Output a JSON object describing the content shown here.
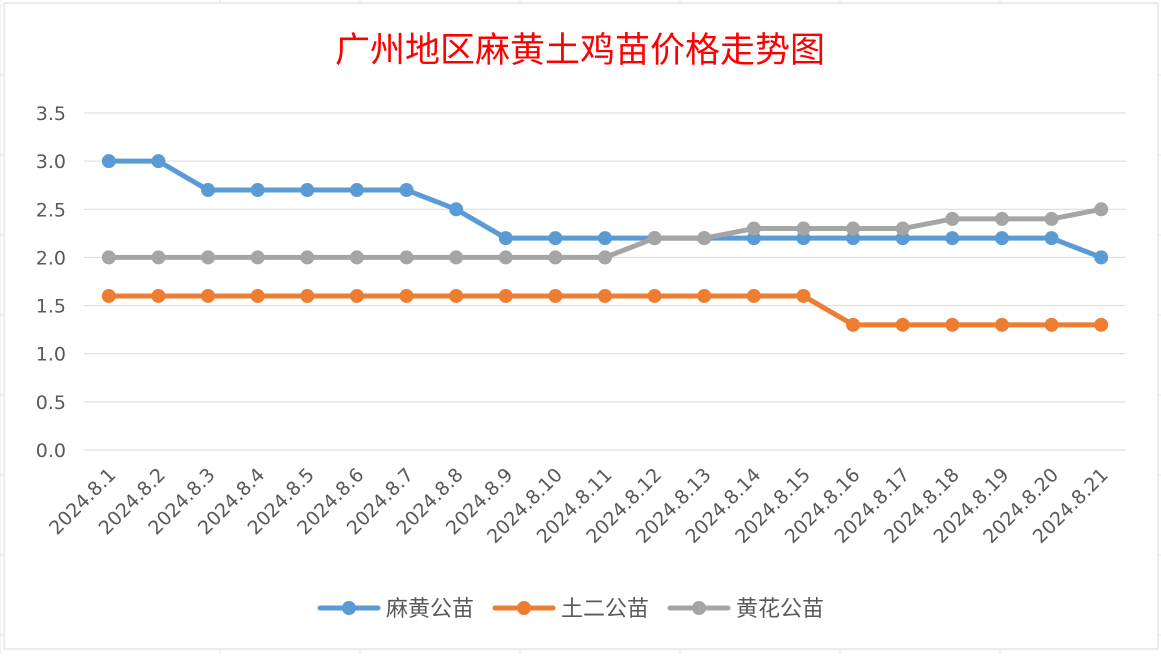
{
  "chart_data": {
    "type": "line",
    "title": "广州地区麻黄土鸡苗价格走势图",
    "xlabel": "",
    "ylabel": "",
    "categories": [
      "2024.8.1",
      "2024.8.2",
      "2024.8.3",
      "2024.8.4",
      "2024.8.5",
      "2024.8.6",
      "2024.8.7",
      "2024.8.8",
      "2024.8.9",
      "2024.8.10",
      "2024.8.11",
      "2024.8.12",
      "2024.8.13",
      "2024.8.14",
      "2024.8.15",
      "2024.8.16",
      "2024.8.17",
      "2024.8.18",
      "2024.8.19",
      "2024.8.20",
      "2024.8.21"
    ],
    "ylim": [
      0,
      3.5
    ],
    "yticks": [
      "0.0",
      "0.5",
      "1.0",
      "1.5",
      "2.0",
      "2.5",
      "3.0",
      "3.5"
    ],
    "grid": true,
    "legend_position": "bottom",
    "series": [
      {
        "name": "麻黄公苗",
        "color": "#5b9bd5",
        "values": [
          3.0,
          3.0,
          2.7,
          2.7,
          2.7,
          2.7,
          2.7,
          2.5,
          2.2,
          2.2,
          2.2,
          2.2,
          2.2,
          2.2,
          2.2,
          2.2,
          2.2,
          2.2,
          2.2,
          2.2,
          2.0
        ]
      },
      {
        "name": "土二公苗",
        "color": "#ed7d31",
        "values": [
          1.6,
          1.6,
          1.6,
          1.6,
          1.6,
          1.6,
          1.6,
          1.6,
          1.6,
          1.6,
          1.6,
          1.6,
          1.6,
          1.6,
          1.6,
          1.3,
          1.3,
          1.3,
          1.3,
          1.3,
          1.3
        ]
      },
      {
        "name": "黄花公苗",
        "color": "#a5a5a5",
        "values": [
          2.0,
          2.0,
          2.0,
          2.0,
          2.0,
          2.0,
          2.0,
          2.0,
          2.0,
          2.0,
          2.0,
          2.2,
          2.2,
          2.3,
          2.3,
          2.3,
          2.3,
          2.4,
          2.4,
          2.4,
          2.5
        ]
      }
    ],
    "title_color": "#ff0000"
  }
}
